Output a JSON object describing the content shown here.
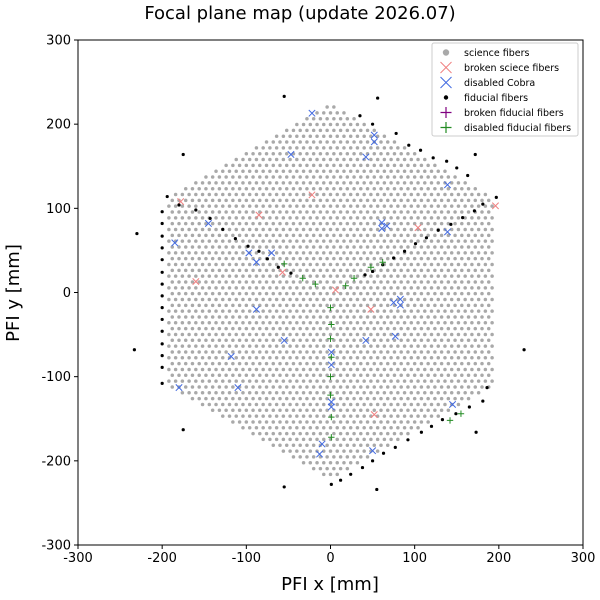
{
  "chart_data": {
    "type": "scatter",
    "title": "Focal plane map (update 2026.07)",
    "xlabel": "PFI x [mm]",
    "ylabel": "PFI y [mm]",
    "xlim": [
      -300,
      300
    ],
    "ylim": [
      -300,
      300
    ],
    "xticks": [
      -300,
      -200,
      -100,
      0,
      100,
      200,
      300
    ],
    "yticks": [
      -300,
      -200,
      -100,
      0,
      100,
      200,
      300
    ],
    "grid": false,
    "legend_position": "top-right",
    "science_region": {
      "shape": "hexagon",
      "vertices": [
        [
          0,
          225
        ],
        [
          195,
          112.5
        ],
        [
          195,
          -112.5
        ],
        [
          0,
          -225
        ],
        [
          -195,
          -112.5
        ],
        [
          -195,
          112.5
        ]
      ],
      "spacing": 8
    },
    "series": [
      {
        "name": "science fibers",
        "marker": "dot",
        "color": "#a9a9a9"
      },
      {
        "name": "broken sciece fibers",
        "marker": "x",
        "color": "#f08080",
        "points": [
          [
            -178,
            108
          ],
          [
            -85,
            92
          ],
          [
            -57,
            24
          ],
          [
            -22,
            116
          ],
          [
            6,
            3
          ],
          [
            48,
            -20
          ],
          [
            52,
            -145
          ],
          [
            104,
            77
          ],
          [
            -160,
            13
          ],
          [
            196,
            103
          ]
        ]
      },
      {
        "name": "disabled Cobra",
        "marker": "x",
        "color": "#4169e1",
        "points": [
          [
            -22,
            213
          ],
          [
            -47,
            164
          ],
          [
            52,
            187
          ],
          [
            52,
            179
          ],
          [
            42,
            161
          ],
          [
            139,
            128
          ],
          [
            -185,
            59
          ],
          [
            -145,
            82
          ],
          [
            -97,
            47
          ],
          [
            -70,
            47
          ],
          [
            -88,
            36
          ],
          [
            61,
            83
          ],
          [
            67,
            79
          ],
          [
            61,
            76
          ],
          [
            139,
            72
          ],
          [
            -88,
            -20
          ],
          [
            -55,
            -57
          ],
          [
            75,
            -12
          ],
          [
            83,
            -8
          ],
          [
            83,
            -15
          ],
          [
            77,
            -52
          ],
          [
            42,
            -57
          ],
          [
            -118,
            -76
          ],
          [
            1,
            -71
          ],
          [
            1,
            -86
          ],
          [
            -180,
            -113
          ],
          [
            -110,
            -113
          ],
          [
            1,
            -130
          ],
          [
            1,
            -136
          ],
          [
            145,
            -133
          ],
          [
            -10,
            -180
          ],
          [
            -13,
            -192
          ],
          [
            50,
            -188
          ]
        ]
      },
      {
        "name": "fiducial fibers",
        "marker": "dot",
        "color": "#000000",
        "points": [
          [
            -55,
            233
          ],
          [
            56,
            231
          ],
          [
            35,
            210
          ],
          [
            -175,
            164
          ],
          [
            172,
            164
          ],
          [
            -194,
            114
          ],
          [
            -180,
            104
          ],
          [
            -160,
            98
          ],
          [
            -143,
            88
          ],
          [
            -128,
            75
          ],
          [
            -113,
            64
          ],
          [
            -98,
            55
          ],
          [
            -85,
            49
          ],
          [
            -75,
            40
          ],
          [
            -62,
            30
          ],
          [
            -47,
            23
          ],
          [
            -230,
            70
          ],
          [
            -200,
            96
          ],
          [
            -200,
            82
          ],
          [
            -200,
            67
          ],
          [
            -200,
            53
          ],
          [
            -200,
            39
          ],
          [
            -200,
            24
          ],
          [
            -200,
            10
          ],
          [
            -200,
            -4
          ],
          [
            -200,
            -18
          ],
          [
            -200,
            -32
          ],
          [
            -200,
            -46
          ],
          [
            -200,
            -61
          ],
          [
            -200,
            -75
          ],
          [
            -200,
            -89
          ],
          [
            -200,
            -108
          ],
          [
            -233,
            -68
          ],
          [
            230,
            -68
          ],
          [
            186,
            -113
          ],
          [
            181,
            -129
          ],
          [
            165,
            -136
          ],
          [
            149,
            -144
          ],
          [
            133,
            -151
          ],
          [
            120,
            -159
          ],
          [
            108,
            -166
          ],
          [
            92,
            -175
          ],
          [
            77,
            -184
          ],
          [
            63,
            -191
          ],
          [
            50,
            -200
          ],
          [
            38,
            -208
          ],
          [
            24,
            -216
          ],
          [
            12,
            -223
          ],
          [
            1,
            -228
          ],
          [
            -55,
            -231
          ],
          [
            55,
            -234
          ],
          [
            -175,
            -163
          ],
          [
            173,
            -166
          ],
          [
            197,
            113
          ],
          [
            181,
            105
          ],
          [
            171,
            97
          ],
          [
            157,
            89
          ],
          [
            143,
            81
          ],
          [
            128,
            74
          ],
          [
            114,
            65
          ],
          [
            101,
            58
          ],
          [
            88,
            49
          ],
          [
            75,
            41
          ],
          [
            62,
            33
          ],
          [
            50,
            25
          ],
          [
            41,
            21
          ],
          [
            50,
            200
          ],
          [
            78,
            189
          ],
          [
            93,
            175
          ],
          [
            107,
            169
          ],
          [
            122,
            160
          ],
          [
            138,
            156
          ],
          [
            150,
            148
          ],
          [
            163,
            139
          ]
        ]
      },
      {
        "name": "broken fiducial fibers",
        "marker": "plus",
        "color": "#800080",
        "points": []
      },
      {
        "name": "disabled fiducial fibers",
        "marker": "plus",
        "color": "#228b22",
        "points": [
          [
            -55,
            34
          ],
          [
            -33,
            17
          ],
          [
            -18,
            10
          ],
          [
            0,
            -18
          ],
          [
            1,
            -38
          ],
          [
            0,
            -55
          ],
          [
            1,
            -77
          ],
          [
            0,
            -100
          ],
          [
            0,
            -122
          ],
          [
            1,
            -148
          ],
          [
            1,
            -172
          ],
          [
            18,
            8
          ],
          [
            28,
            17
          ],
          [
            48,
            30
          ],
          [
            62,
            36
          ],
          [
            142,
            -152
          ],
          [
            155,
            -144
          ]
        ]
      }
    ]
  }
}
